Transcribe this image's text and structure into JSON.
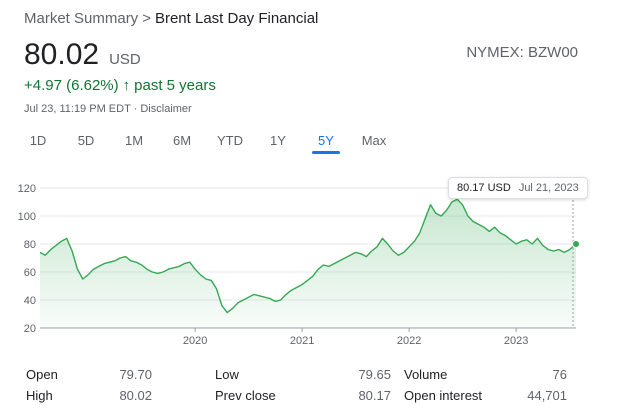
{
  "breadcrumb": {
    "root": "Market Summary",
    "separator": ">",
    "current": "Brent Last Day Financial"
  },
  "price": {
    "value": "80.02",
    "currency": "USD",
    "ticker": "NYMEX: BZW00"
  },
  "change": {
    "amount": "+4.97 (6.62%)",
    "arrow": "↑",
    "period": "past 5 years",
    "color": "#137333"
  },
  "timestamp": "Jul 23, 11:19 PM EDT · Disclaimer",
  "tabs": [
    {
      "label": "1D",
      "active": false
    },
    {
      "label": "5D",
      "active": false
    },
    {
      "label": "1M",
      "active": false
    },
    {
      "label": "6M",
      "active": false
    },
    {
      "label": "YTD",
      "active": false
    },
    {
      "label": "1Y",
      "active": false
    },
    {
      "label": "5Y",
      "active": true
    },
    {
      "label": "Max",
      "active": false
    }
  ],
  "tooltip": {
    "price": "80.17 USD",
    "date": "Jul 21, 2023"
  },
  "chart_data": {
    "type": "area",
    "ylim": [
      20,
      120
    ],
    "xlim": [
      2018.55,
      2023.56
    ],
    "yticks": [
      20,
      40,
      60,
      80,
      100,
      120
    ],
    "xticks": [
      "2020",
      "2021",
      "2022",
      "2023"
    ],
    "grid": true,
    "line_color": "#34a853",
    "fill_color": "#e6f4ea",
    "series": [
      {
        "x": [
          2018.55,
          2018.6,
          2018.65,
          2018.7,
          2018.75,
          2018.8,
          2018.85,
          2018.9,
          2018.95,
          2019.0,
          2019.05,
          2019.1,
          2019.15,
          2019.2,
          2019.25,
          2019.3,
          2019.35,
          2019.4,
          2019.45,
          2019.5,
          2019.55,
          2019.6,
          2019.65,
          2019.7,
          2019.75,
          2019.8,
          2019.85,
          2019.9,
          2019.95,
          2020.0,
          2020.05,
          2020.1,
          2020.15,
          2020.2,
          2020.25,
          2020.3,
          2020.35,
          2020.4,
          2020.45,
          2020.5,
          2020.55,
          2020.6,
          2020.65,
          2020.7,
          2020.75,
          2020.8,
          2020.85,
          2020.9,
          2020.95,
          2021.0,
          2021.05,
          2021.1,
          2021.15,
          2021.2,
          2021.25,
          2021.3,
          2021.35,
          2021.4,
          2021.45,
          2021.5,
          2021.55,
          2021.6,
          2021.65,
          2021.7,
          2021.75,
          2021.8,
          2021.85,
          2021.9,
          2021.95,
          2022.0,
          2022.05,
          2022.1,
          2022.15,
          2022.2,
          2022.25,
          2022.3,
          2022.35,
          2022.4,
          2022.45,
          2022.5,
          2022.55,
          2022.6,
          2022.65,
          2022.7,
          2022.75,
          2022.8,
          2022.85,
          2022.9,
          2022.95,
          2023.0,
          2023.05,
          2023.1,
          2023.15,
          2023.2,
          2023.25,
          2023.3,
          2023.35,
          2023.4,
          2023.45,
          2023.5,
          2023.56
        ],
        "y": [
          74,
          72,
          76,
          79,
          82,
          84,
          75,
          62,
          55,
          58,
          62,
          64,
          66,
          67,
          68,
          70,
          71,
          68,
          67,
          65,
          62,
          60,
          59,
          60,
          62,
          63,
          64,
          66,
          67,
          62,
          58,
          55,
          54,
          48,
          36,
          31,
          34,
          38,
          40,
          42,
          44,
          43,
          42,
          41,
          39,
          40,
          44,
          47,
          49,
          51,
          54,
          57,
          62,
          65,
          64,
          66,
          68,
          70,
          72,
          74,
          73,
          71,
          75,
          78,
          84,
          80,
          75,
          72,
          74,
          78,
          82,
          88,
          98,
          108,
          102,
          100,
          104,
          110,
          112,
          108,
          100,
          96,
          94,
          92,
          89,
          92,
          88,
          86,
          83,
          80,
          82,
          83,
          80,
          84,
          79,
          76,
          75,
          76,
          74,
          76,
          80
        ]
      }
    ]
  },
  "stats": [
    [
      {
        "label": "Open",
        "value": "79.70"
      },
      {
        "label": "Low",
        "value": "79.65"
      },
      {
        "label": "Volume",
        "value": "76"
      }
    ],
    [
      {
        "label": "High",
        "value": "80.02"
      },
      {
        "label": "Prev close",
        "value": "80.17"
      },
      {
        "label": "Open interest",
        "value": "44,701"
      }
    ]
  ]
}
